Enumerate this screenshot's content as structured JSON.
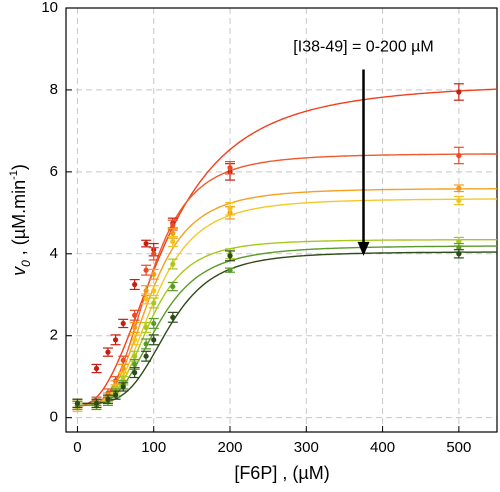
{
  "chart_data": {
    "type": "scatter",
    "x_label": "[F6P] , (µM)",
    "y_label_parts": [
      "v",
      "0",
      " , (µM.min",
      "-1",
      ")"
    ],
    "annotation": "[I38-49] = 0-200 µM",
    "annotation_arrow_x": 375,
    "annotation_arrow_y": [
      8.5,
      3.95
    ],
    "x": [
      0,
      25,
      40,
      50,
      60,
      75,
      90,
      100,
      125,
      200,
      500
    ],
    "series": [
      {
        "color": "#c81e12",
        "line_color": "#f0401e",
        "values": [
          0.3,
          1.2,
          1.6,
          1.9,
          2.3,
          3.25,
          4.25,
          4.1,
          4.75,
          6.0,
          7.95
        ],
        "errors": [
          0.1,
          0.1,
          0.1,
          0.12,
          0.1,
          0.12,
          0.08,
          0.15,
          0.12,
          0.2,
          0.2
        ],
        "fit": {
          "baseline": 0.3,
          "vmax": 8.2,
          "k": 115,
          "n": 2.4
        }
      },
      {
        "color": "#ea4a26",
        "line_color": "#ee5a2a",
        "values": [
          0.35,
          0.4,
          0.6,
          0.9,
          1.4,
          2.5,
          3.6,
          4.0,
          4.7,
          6.1,
          6.4
        ],
        "errors": [
          0.1,
          0.1,
          0.1,
          0.1,
          0.1,
          0.12,
          0.12,
          0.15,
          0.12,
          0.15,
          0.2
        ],
        "fit": {
          "baseline": 0.3,
          "vmax": 6.45,
          "k": 95,
          "n": 3.5
        }
      },
      {
        "color": "#f39a1c",
        "line_color": "#f5a020",
        "values": [
          0.3,
          0.35,
          0.5,
          0.8,
          1.2,
          2.2,
          3.1,
          3.5,
          4.5,
          5.0,
          5.6
        ],
        "errors": [
          0.1,
          0.1,
          0.1,
          0.1,
          0.1,
          0.12,
          0.12,
          0.12,
          0.12,
          0.15,
          0.08
        ],
        "fit": {
          "baseline": 0.3,
          "vmax": 5.6,
          "k": 95,
          "n": 3.5
        }
      },
      {
        "color": "#f5c21a",
        "line_color": "#f5c828",
        "values": [
          0.25,
          0.3,
          0.45,
          0.7,
          1.0,
          1.9,
          2.9,
          3.1,
          4.3,
          5.1,
          5.3
        ],
        "errors": [
          0.1,
          0.1,
          0.1,
          0.1,
          0.1,
          0.12,
          0.12,
          0.12,
          0.12,
          0.15,
          0.1
        ],
        "fit": {
          "baseline": 0.3,
          "vmax": 5.35,
          "k": 100,
          "n": 3.5
        }
      },
      {
        "color": "#a8c81e",
        "line_color": "#a8c81e",
        "values": [
          0.3,
          0.3,
          0.4,
          0.65,
          0.9,
          1.5,
          2.2,
          2.8,
          3.75,
          4.0,
          4.3
        ],
        "errors": [
          0.1,
          0.1,
          0.1,
          0.1,
          0.1,
          0.12,
          0.12,
          0.12,
          0.12,
          0.12,
          0.1
        ],
        "fit": {
          "baseline": 0.3,
          "vmax": 4.35,
          "k": 95,
          "n": 3.8
        }
      },
      {
        "color": "#5a9a2a",
        "line_color": "#5a9a2a",
        "values": [
          0.3,
          0.3,
          0.4,
          0.6,
          0.8,
          1.3,
          1.8,
          2.3,
          3.2,
          3.6,
          4.15
        ],
        "errors": [
          0.1,
          0.1,
          0.1,
          0.1,
          0.1,
          0.12,
          0.12,
          0.12,
          0.1,
          0.05,
          0.1
        ],
        "fit": {
          "baseline": 0.3,
          "vmax": 4.2,
          "k": 105,
          "n": 3.5
        }
      },
      {
        "color": "#2d4a1a",
        "line_color": "#2d4a1a",
        "values": [
          0.35,
          0.35,
          0.45,
          0.55,
          0.75,
          1.1,
          1.5,
          1.9,
          2.45,
          3.95,
          4.0
        ],
        "errors": [
          0.1,
          0.1,
          0.1,
          0.1,
          0.1,
          0.12,
          0.12,
          0.12,
          0.12,
          0.12,
          0.1
        ],
        "fit": {
          "baseline": 0.35,
          "vmax": 4.05,
          "k": 120,
          "n": 4
        }
      }
    ],
    "xlim": [
      -15,
      550
    ],
    "ylim": [
      -0.35,
      10
    ],
    "xticks": [
      0,
      100,
      200,
      300,
      400,
      500
    ],
    "yticks": [
      0,
      2,
      4,
      6,
      8,
      10
    ],
    "grid": true
  }
}
